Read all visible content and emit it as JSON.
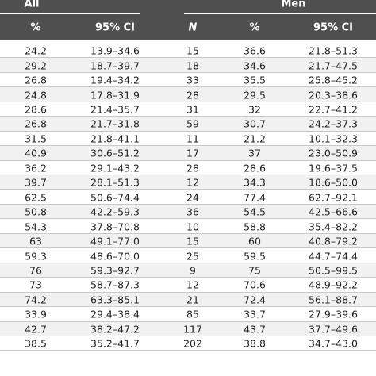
{
  "table": {
    "groups": [
      "All",
      "Men"
    ],
    "columns": [
      "%",
      "95% CI",
      "N",
      "%",
      "95% CI"
    ],
    "rows": [
      [
        "24.2",
        "13.9–34.6",
        "15",
        "36.6",
        "21.8–51.3"
      ],
      [
        "29.2",
        "18.7–39.7",
        "18",
        "34.6",
        "21.7–47.5"
      ],
      [
        "26.8",
        "19.4–34.2",
        "33",
        "35.5",
        "25.8–45.2"
      ],
      [
        "24.8",
        "17.8–31.9",
        "28",
        "29.5",
        "20.3–38.6"
      ],
      [
        "28.6",
        "21.4–35.7",
        "31",
        "32",
        "22.7–41.2"
      ],
      [
        "26.8",
        "21.7–31.8",
        "59",
        "30.7",
        "24.2–37.3"
      ],
      [
        "31.5",
        "21.8–41.1",
        "11",
        "21.2",
        "10.1–32.3"
      ],
      [
        "40.9",
        "30.6–51.2",
        "17",
        "37",
        "23.0–50.9"
      ],
      [
        "36.2",
        "29.1–43.2",
        "28",
        "28.6",
        "19.6–37.5"
      ],
      [
        "39.7",
        "28.1–51.3",
        "12",
        "34.3",
        "18.6–50.0"
      ],
      [
        "62.5",
        "50.6–74.4",
        "24",
        "77.4",
        "62.7–92.1"
      ],
      [
        "50.8",
        "42.2–59.3",
        "36",
        "54.5",
        "42.5–66.6"
      ],
      [
        "54.3",
        "37.8–70.8",
        "10",
        "58.8",
        "35.4–82.2"
      ],
      [
        "63",
        "49.1–77.0",
        "15",
        "60",
        "40.8–79.2"
      ],
      [
        "59.3",
        "48.6–70.0",
        "25",
        "59.5",
        "44.7–74.4"
      ],
      [
        "76",
        "59.3–92.7",
        "9",
        "75",
        "50.5–99.5"
      ],
      [
        "73",
        "58.7–87.3",
        "12",
        "70.6",
        "48.9–92.2"
      ],
      [
        "74.2",
        "63.3–85.1",
        "21",
        "72.4",
        "56.1–88.7"
      ],
      [
        "33.9",
        "29.4–38.4",
        "85",
        "33.7",
        "27.9–39.6"
      ],
      [
        "42.7",
        "38.2–47.2",
        "117",
        "43.7",
        "37.7–49.6"
      ],
      [
        "38.5",
        "35.2–41.7",
        "202",
        "38.8",
        "34.7–43.0"
      ]
    ]
  }
}
